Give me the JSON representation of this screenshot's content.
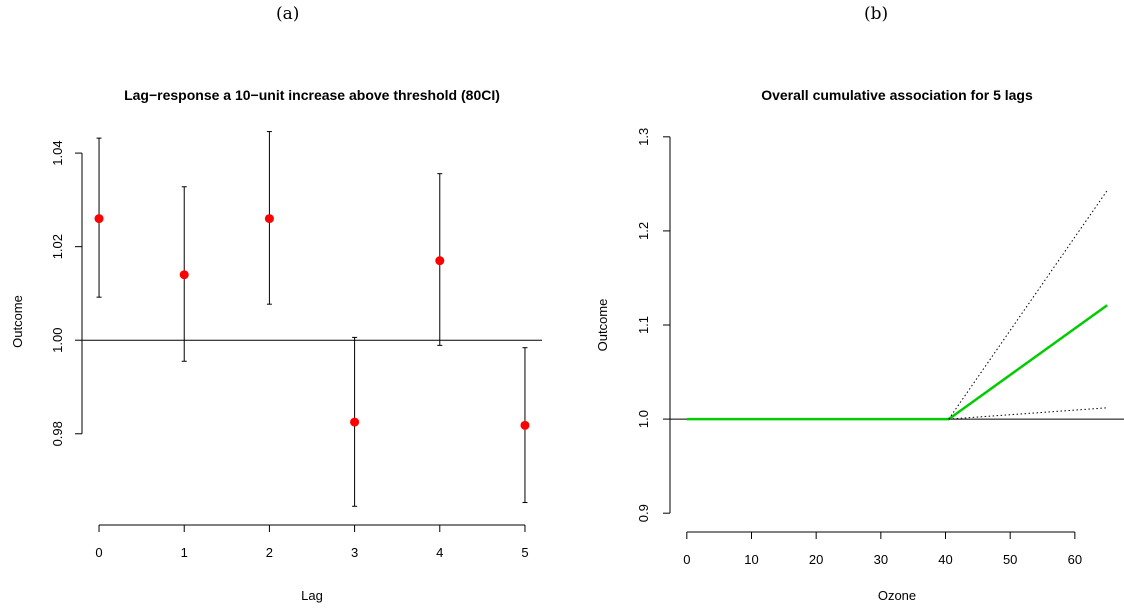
{
  "panel_labels": [
    "(a)",
    "(b)"
  ],
  "chart_data": [
    {
      "type": "scatter",
      "title": "Lag−response a 10−unit increase above threshold (80CI)",
      "xlabel": "Lag",
      "ylabel": "Outcome",
      "x": [
        0,
        1,
        2,
        3,
        4,
        5
      ],
      "y": [
        1.026,
        1.014,
        1.026,
        0.9825,
        1.017,
        0.9818
      ],
      "ci_low": [
        1.0092,
        0.9955,
        1.0077,
        0.9645,
        0.9989,
        0.9653
      ],
      "ci_high": [
        1.0432,
        1.0328,
        1.0446,
        1.0006,
        1.0356,
        0.9984
      ],
      "xticks": [
        0,
        1,
        2,
        3,
        4,
        5
      ],
      "yticks": [
        0.98,
        1.0,
        1.02,
        1.04
      ],
      "ytick_labels": [
        "0.98",
        "1.00",
        "1.02",
        "1.04"
      ],
      "xlim": [
        -0.2,
        5.2
      ],
      "ylim": [
        0.9605,
        1.0475
      ],
      "reference_line": 1.0,
      "point_color": "#ff0000",
      "grid": false
    },
    {
      "type": "line",
      "title": "Overall cumulative association for 5 lags",
      "xlabel": "Ozone",
      "ylabel": "Outcome",
      "series": [
        {
          "role": "estimate",
          "x": [
            0,
            40.5,
            65
          ],
          "y": [
            1.0,
            1.0,
            1.121
          ],
          "color": "#00cc00"
        },
        {
          "role": "upper",
          "x": [
            40.5,
            65
          ],
          "y": [
            1.0,
            1.243
          ],
          "color": "#000000"
        },
        {
          "role": "lower",
          "x": [
            40.5,
            65
          ],
          "y": [
            1.0,
            1.012
          ],
          "color": "#000000"
        }
      ],
      "xticks": [
        0,
        10,
        20,
        30,
        40,
        50,
        60
      ],
      "yticks": [
        0.9,
        1.0,
        1.1,
        1.2,
        1.3
      ],
      "ytick_labels": [
        "0.9",
        "1.0",
        "1.1",
        "1.2",
        "1.3"
      ],
      "xlim": [
        -2.6,
        67.6
      ],
      "ylim": [
        0.88,
        1.32
      ],
      "reference_line": 1.0,
      "grid": false
    }
  ]
}
